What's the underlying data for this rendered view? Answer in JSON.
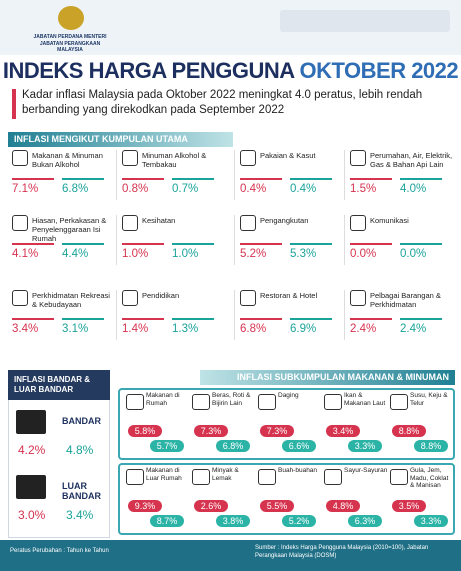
{
  "header": {
    "org": [
      "JABATAN PERDANA MENTERI",
      "JABATAN PERANGKAAN MALAYSIA"
    ]
  },
  "title": {
    "main": "INDEKS HARGA PENGGUNA",
    "month": "OKTOBER 2022"
  },
  "summary": "Kadar inflasi Malaysia pada Oktober 2022 meningkat 4.0 peratus, lebih rendah berbanding yang direkodkan pada September 2022",
  "main_groups": {
    "title": "INFLASI MENGIKUT KUMPULAN UTAMA",
    "items": [
      {
        "name": "Makanan & Minuman Bukan Alkohol",
        "values": [
          "7.1%",
          "6.8%"
        ]
      },
      {
        "name": "Minuman Alkohol & Tembakau",
        "values": [
          "0.8%",
          "0.7%"
        ]
      },
      {
        "name": "Pakaian & Kasut",
        "values": [
          "0.4%",
          "0.4%"
        ]
      },
      {
        "name": "Perumahan, Air, Elektrik, Gas & Bahan Api Lain",
        "values": [
          "1.5%",
          "4.0%"
        ]
      },
      {
        "name": "Hiasan, Perkakasan & Penyelenggaraan Isi Rumah",
        "values": [
          "4.1%",
          "4.4%"
        ]
      },
      {
        "name": "Kesihatan",
        "values": [
          "1.0%",
          "1.0%"
        ]
      },
      {
        "name": "Pengangkutan",
        "values": [
          "5.2%",
          "5.3%"
        ]
      },
      {
        "name": "Komunikasi",
        "values": [
          "0.0%",
          "0.0%"
        ]
      },
      {
        "name": "Perkhidmatan Rekreasi & Kebudayaan",
        "values": [
          "3.4%",
          "3.1%"
        ]
      },
      {
        "name": "Pendidikan",
        "values": [
          "1.4%",
          "1.3%"
        ]
      },
      {
        "name": "Restoran & Hotel",
        "values": [
          "6.8%",
          "6.9%"
        ]
      },
      {
        "name": "Pelbagai Barangan & Perkhidmatan",
        "values": [
          "2.4%",
          "2.4%"
        ]
      }
    ]
  },
  "urban_rural": {
    "title": "INFLASI BANDAR & LUAR BANDAR",
    "items": [
      {
        "name": "BANDAR",
        "values": [
          "4.2%",
          "4.8%"
        ]
      },
      {
        "name": "LUAR BANDAR",
        "values": [
          "3.0%",
          "3.4%"
        ]
      }
    ]
  },
  "food_subgroups": {
    "title": "INFLASI SUBKUMPULAN MAKANAN & MINUMAN",
    "rows": [
      [
        {
          "name": "Makanan di Rumah",
          "values": [
            "5.8%",
            "5.7%"
          ]
        },
        {
          "name": "Beras, Roti & Bijirin Lain",
          "values": [
            "7.3%",
            "6.8%"
          ]
        },
        {
          "name": "Daging",
          "values": [
            "7.3%",
            "6.6%"
          ]
        },
        {
          "name": "Ikan & Makanan Laut",
          "values": [
            "3.4%",
            "3.3%"
          ]
        },
        {
          "name": "Susu, Keju & Telur",
          "values": [
            "8.8%",
            "8.8%"
          ]
        }
      ],
      [
        {
          "name": "Makanan di Luar Rumah",
          "values": [
            "9.3%",
            "8.7%"
          ]
        },
        {
          "name": "Minyak & Lemak",
          "values": [
            "2.6%",
            "3.8%"
          ]
        },
        {
          "name": "Buah-buahan",
          "values": [
            "5.5%",
            "5.2%"
          ]
        },
        {
          "name": "Sayur-Sayuran",
          "values": [
            "4.8%",
            "6.3%"
          ]
        },
        {
          "name": "Gula, Jem, Madu, Coklat & Manisan",
          "values": [
            "3.5%",
            "3.3%"
          ]
        }
      ]
    ]
  },
  "footer": {
    "note": "Peratus Perubahan : Tahun ke Tahun",
    "source": "Sumber : Indeks Harga Pengguna Malaysia (2010=100), Jabatan Perangkaan Malaysia (DOSM)"
  }
}
